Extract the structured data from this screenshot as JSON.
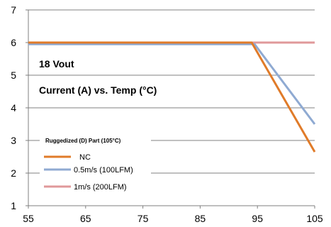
{
  "chart_data": {
    "type": "line",
    "xlim": [
      55,
      105
    ],
    "ylim": [
      1,
      7
    ],
    "x_ticks": [
      "55",
      "65",
      "75",
      "85",
      "95",
      "105"
    ],
    "y_ticks": [
      "1",
      "2",
      "3",
      "4",
      "5",
      "6",
      "7"
    ],
    "grid": "horizontal",
    "annotations": {
      "vout": "18 Vout",
      "title": "Current (A) vs. Temp (°C)"
    },
    "legend": {
      "title": "Ruggedized (D) Part (105°C)",
      "placement": "bottom-left"
    },
    "series": [
      {
        "name": "NC",
        "color": "#e07b29",
        "x": [
          55,
          94,
          105
        ],
        "y": [
          6,
          6,
          2.65
        ]
      },
      {
        "name": "0.5m/s (100LFM)",
        "color": "#8faad2",
        "x": [
          55,
          94.5,
          105
        ],
        "y": [
          5.95,
          5.95,
          3.5
        ]
      },
      {
        "name": "1m/s (200LFM)",
        "color": "#e0989a",
        "x": [
          55,
          105
        ],
        "y": [
          6,
          6
        ]
      }
    ]
  }
}
